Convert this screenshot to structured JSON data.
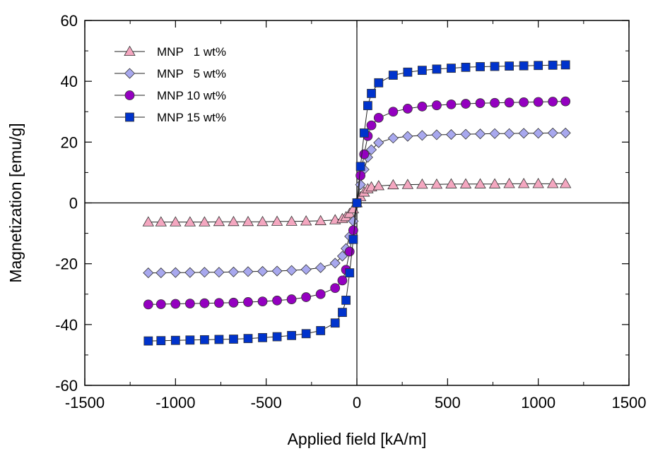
{
  "chart_data": {
    "type": "scatter",
    "xlabel": "Applied field [kA/m]",
    "ylabel": "Magnetization [emu/g]",
    "xlim": [
      -1500,
      1500
    ],
    "ylim": [
      -60,
      60
    ],
    "xticks": [
      -1500,
      -1000,
      -500,
      0,
      500,
      1000,
      1500
    ],
    "yticks": [
      -60,
      -40,
      -20,
      0,
      20,
      40,
      60
    ],
    "grid": false,
    "legend_position": "top-left",
    "zero_lines": true,
    "x": [
      -1150,
      -1080,
      -1000,
      -920,
      -840,
      -760,
      -680,
      -600,
      -520,
      -440,
      -360,
      -280,
      -200,
      -120,
      -80,
      -60,
      -40,
      -20,
      0,
      20,
      40,
      60,
      80,
      120,
      200,
      280,
      360,
      440,
      520,
      600,
      680,
      760,
      840,
      920,
      1000,
      1080,
      1150
    ],
    "series": [
      {
        "name": "MNP   1 wt%",
        "marker": "triangle",
        "color": "#F4A7C0",
        "values": [
          -6.3,
          -6.3,
          -6.3,
          -6.3,
          -6.3,
          -6.2,
          -6.2,
          -6.2,
          -6.2,
          -6.1,
          -6.1,
          -6.0,
          -5.9,
          -5.6,
          -5.2,
          -4.6,
          -3.5,
          -2.0,
          0.0,
          2.0,
          3.5,
          4.6,
          5.2,
          5.6,
          5.9,
          6.0,
          6.1,
          6.1,
          6.2,
          6.2,
          6.2,
          6.2,
          6.3,
          6.3,
          6.3,
          6.3,
          6.3
        ]
      },
      {
        "name": "MNP   5 wt%",
        "marker": "diamond",
        "color": "#A8A8EE",
        "values": [
          -23.0,
          -23.0,
          -22.9,
          -22.9,
          -22.8,
          -22.8,
          -22.7,
          -22.6,
          -22.5,
          -22.4,
          -22.2,
          -21.9,
          -21.3,
          -19.8,
          -17.5,
          -15.0,
          -11.0,
          -6.0,
          0.0,
          6.0,
          11.0,
          15.0,
          17.5,
          19.8,
          21.3,
          21.9,
          22.2,
          22.4,
          22.5,
          22.6,
          22.7,
          22.8,
          22.8,
          22.9,
          22.9,
          23.0,
          23.0
        ]
      },
      {
        "name": "MNP 10 wt%",
        "marker": "circle",
        "color": "#9400C0",
        "values": [
          -33.4,
          -33.3,
          -33.2,
          -33.1,
          -33.0,
          -32.9,
          -32.8,
          -32.6,
          -32.4,
          -32.1,
          -31.7,
          -31.0,
          -30.0,
          -28.0,
          -25.5,
          -22.0,
          -16.0,
          -9.0,
          0.0,
          9.0,
          16.0,
          22.0,
          25.5,
          28.0,
          30.0,
          31.0,
          31.7,
          32.1,
          32.4,
          32.6,
          32.8,
          32.9,
          33.0,
          33.1,
          33.2,
          33.3,
          33.4
        ]
      },
      {
        "name": "MNP 15 wt%",
        "marker": "square",
        "color": "#0033CC",
        "values": [
          -45.4,
          -45.3,
          -45.2,
          -45.1,
          -45.0,
          -44.9,
          -44.8,
          -44.6,
          -44.3,
          -44.0,
          -43.6,
          -43.0,
          -42.0,
          -39.5,
          -36.0,
          -32.0,
          -23.0,
          -12.0,
          0.0,
          12.0,
          23.0,
          32.0,
          36.0,
          39.5,
          42.0,
          43.0,
          43.6,
          44.0,
          44.3,
          44.6,
          44.8,
          44.9,
          45.0,
          45.1,
          45.2,
          45.3,
          45.4
        ]
      }
    ]
  }
}
